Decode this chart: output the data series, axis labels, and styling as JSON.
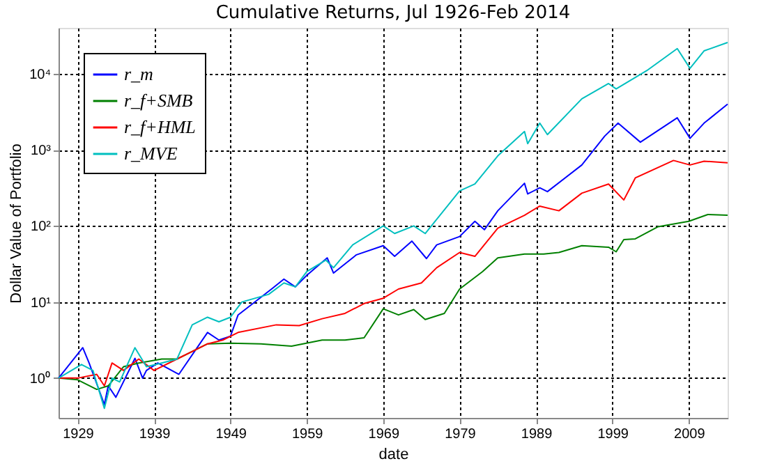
{
  "chart_data": {
    "type": "line",
    "title": "Cumulative Returns, Jul 1926-Feb 2014",
    "xlabel": "date",
    "ylabel": "Dollar Value of Portfolio",
    "log": "y",
    "grid": true,
    "legend": "top left",
    "marker": "none",
    "line_style": "solid",
    "xlim": [
      "1926-07",
      "2014-02"
    ],
    "xticks": [
      "1929",
      "1939",
      "1949",
      "1959",
      "1969",
      "1979",
      "1989",
      "1999",
      "2009"
    ],
    "ylim": [
      0.3,
      40000
    ],
    "yticks": [
      {
        "value": 1,
        "label": "10⁰"
      },
      {
        "value": 10,
        "label": "10¹"
      },
      {
        "value": 100,
        "label": "10²"
      },
      {
        "value": 1000,
        "label": "10³"
      },
      {
        "value": 10000,
        "label": "10⁴"
      }
    ],
    "series": [
      {
        "name": "r_m",
        "color": "#0000ff",
        "x": [
          "1926-07",
          "1929-09",
          "1930-07",
          "1932-07",
          "1933-01",
          "1934-01",
          "1936-07",
          "1937-07",
          "1938-01",
          "1939-07",
          "1942-04",
          "1946-01",
          "1947-07",
          "1949-01",
          "1950-01",
          "1954-07",
          "1956-01",
          "1957-07",
          "1959-01",
          "1961-09",
          "1962-07",
          "1965-07",
          "1969-01",
          "1970-07",
          "1972-10",
          "1974-09",
          "1976-01",
          "1979-01",
          "1981-01",
          "1982-04",
          "1984-01",
          "1987-07",
          "1987-12",
          "1989-07",
          "1990-07",
          "1995-01",
          "1998-01",
          "1999-10",
          "2002-09",
          "2007-07",
          "2009-03",
          "2011-01",
          "2014-02"
        ],
        "values": [
          1,
          2.51,
          1.58,
          0.45,
          0.79,
          0.56,
          1.82,
          1,
          1.26,
          1.58,
          1.12,
          3.98,
          3.16,
          3.55,
          6.76,
          15.1,
          20,
          15.8,
          22.4,
          38,
          24,
          41.7,
          55,
          39.8,
          63.1,
          37.2,
          56.2,
          72.4,
          115,
          89.1,
          158,
          363,
          263,
          316,
          282,
          631,
          1514,
          2239,
          1259,
          2630,
          1413,
          2239,
          3981
        ]
      },
      {
        "name": "r_f+SMB",
        "color": "#008000",
        "x": [
          "1926-07",
          "1929-01",
          "1931-07",
          "1933-01",
          "1935-01",
          "1937-01",
          "1940-01",
          "1942-01",
          "1944-01",
          "1946-01",
          "1949-01",
          "1953-01",
          "1957-01",
          "1961-01",
          "1964-01",
          "1966-07",
          "1969-01",
          "1971-01",
          "1973-01",
          "1974-07",
          "1977-01",
          "1979-01",
          "1982-01",
          "1984-01",
          "1987-07",
          "1990-01",
          "1992-01",
          "1995-01",
          "1998-07",
          "1999-07",
          "2000-07",
          "2002-01",
          "2005-01",
          "2009-01",
          "2011-07",
          "2014-02"
        ],
        "values": [
          1,
          0.95,
          0.71,
          0.79,
          1.41,
          1.58,
          1.78,
          1.78,
          2.24,
          2.82,
          2.88,
          2.82,
          2.63,
          3.16,
          3.16,
          3.39,
          8.13,
          6.76,
          7.94,
          5.89,
          7.08,
          14.8,
          25.1,
          38,
          42.7,
          42.7,
          44.7,
          55,
          52.5,
          45.7,
          66.1,
          67.6,
          97.7,
          115,
          141,
          138
        ]
      },
      {
        "name": "r_f+HML",
        "color": "#ff0000",
        "x": [
          "1926-07",
          "1929-01",
          "1931-07",
          "1932-07",
          "1933-07",
          "1935-01",
          "1937-01",
          "1939-01",
          "1942-01",
          "1944-01",
          "1946-01",
          "1948-01",
          "1950-01",
          "1955-01",
          "1958-01",
          "1961-01",
          "1964-01",
          "1966-07",
          "1969-01",
          "1971-01",
          "1974-01",
          "1976-01",
          "1979-01",
          "1981-01",
          "1984-01",
          "1987-07",
          "1989-07",
          "1992-01",
          "1995-01",
          "1998-07",
          "2000-07",
          "2002-01",
          "2007-01",
          "2009-03",
          "2011-01",
          "2014-02"
        ],
        "values": [
          1,
          1,
          1.12,
          0.79,
          1.58,
          1.26,
          1.78,
          1.26,
          1.78,
          2.24,
          2.82,
          3.16,
          3.98,
          5.01,
          4.9,
          6.03,
          7.08,
          9.55,
          11.2,
          14.8,
          17.8,
          28.2,
          44.7,
          39.8,
          93.3,
          138,
          182,
          158,
          269,
          355,
          219,
          427,
          724,
          631,
          708,
          676
        ]
      },
      {
        "name": "r_MVE",
        "color": "#00bfbf",
        "x": [
          "1926-07",
          "1929-07",
          "1931-01",
          "1932-07",
          "1933-07",
          "1934-07",
          "1936-07",
          "1938-01",
          "1940-01",
          "1942-01",
          "1944-01",
          "1946-01",
          "1947-07",
          "1949-01",
          "1950-07",
          "1954-01",
          "1956-01",
          "1957-07",
          "1959-01",
          "1961-07",
          "1962-07",
          "1965-01",
          "1969-01",
          "1970-07",
          "1973-01",
          "1974-07",
          "1979-01",
          "1981-01",
          "1984-01",
          "1987-07",
          "1987-12",
          "1989-07",
          "1990-07",
          "1995-01",
          "1998-07",
          "1999-07",
          "2003-07",
          "2007-07",
          "2009-03",
          "2011-01",
          "2014-02"
        ],
        "values": [
          1,
          1.51,
          1.26,
          0.4,
          1,
          0.89,
          2.51,
          1.41,
          1.58,
          1.78,
          5.01,
          6.31,
          5.5,
          6.31,
          10,
          12.6,
          17.8,
          15.8,
          25.1,
          35.5,
          28.2,
          56.2,
          100,
          79.4,
          100,
          79.4,
          288,
          355,
          832,
          1738,
          1202,
          2239,
          1585,
          4677,
          7413,
          6310,
          10960,
          21380,
          11750,
          19950,
          25700
        ]
      }
    ]
  }
}
